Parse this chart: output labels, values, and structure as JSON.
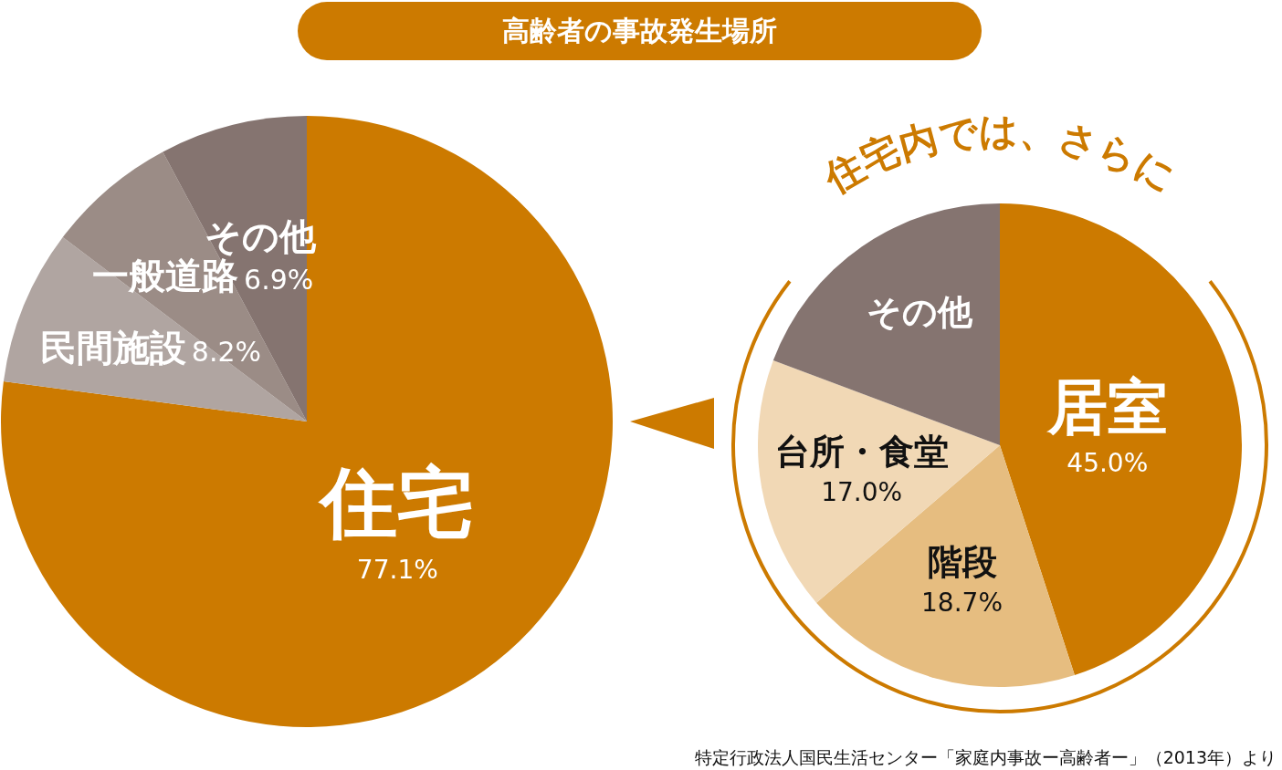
{
  "chart_data": [
    {
      "type": "pie",
      "title": "高齢者の事故発生場所",
      "categories": [
        "住宅",
        "民間施設",
        "一般道路",
        "その他"
      ],
      "values": [
        77.1,
        8.2,
        6.9,
        7.8
      ],
      "colors": [
        "#cc7a00",
        "#b0a5a1",
        "#9b8c86",
        "#857470"
      ],
      "value_labels": [
        "77.1%",
        "8.2%",
        "6.9%",
        null
      ]
    },
    {
      "type": "pie",
      "title": "住宅内では、さらに",
      "categories": [
        "居室",
        "階段",
        "台所・食堂",
        "その他"
      ],
      "values": [
        45.0,
        18.7,
        17.0,
        19.3
      ],
      "colors": [
        "#cc7a00",
        "#e6bd80",
        "#f1d8b5",
        "#857470"
      ],
      "value_labels": [
        "45.0%",
        "18.7%",
        "17.0%",
        null
      ],
      "annotations": [
        "特定行政法人国民生活センター「家庭内事故ー高齢者ー」（2013年）より"
      ]
    }
  ]
}
